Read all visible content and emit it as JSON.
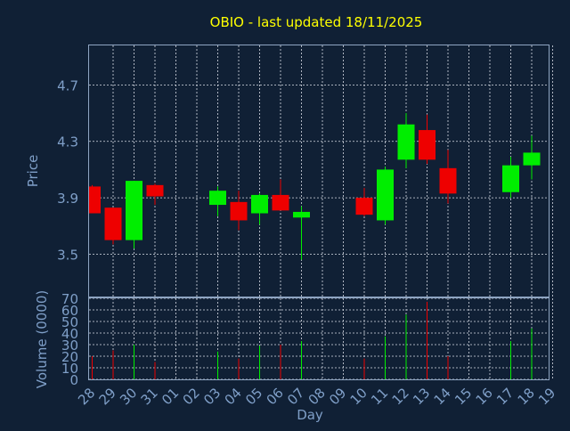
{
  "colors": {
    "background": "#102035",
    "frame": "#8fa5c2",
    "grid": "#d8dde6",
    "title": "#ffff00",
    "label": "#7f9fc8",
    "up": "#00ee00",
    "down": "#ee0000"
  },
  "chart_data": {
    "type": "candlestick",
    "title": "OBIO - last updated 18/11/2025",
    "xlabel": "Day",
    "price_panel": {
      "ylabel": "Price",
      "ylim": [
        3.2,
        4.98
      ],
      "yticks": [
        "3.5",
        "3.9",
        "4.3",
        "4.7"
      ],
      "grid": true
    },
    "volume_panel": {
      "ylabel": "Volume (0000)",
      "ylim": [
        0,
        70
      ],
      "yticks": [
        "0",
        "10",
        "20",
        "30",
        "40",
        "50",
        "60",
        "70"
      ],
      "grid": true
    },
    "x_ticks": [
      "28",
      "29",
      "30",
      "31",
      "01",
      "02",
      "03",
      "04",
      "05",
      "06",
      "07",
      "08",
      "09",
      "10",
      "11",
      "12",
      "13",
      "14",
      "15",
      "16",
      "17",
      "18",
      "19"
    ],
    "candles": [
      {
        "day": "28",
        "open": 3.98,
        "high": 3.99,
        "low": 3.79,
        "close": 3.79,
        "volume": 20
      },
      {
        "day": "29",
        "open": 3.83,
        "high": 3.83,
        "low": 3.57,
        "close": 3.6,
        "volume": 25
      },
      {
        "day": "30",
        "open": 3.6,
        "high": 4.02,
        "low": 3.54,
        "close": 4.02,
        "volume": 30
      },
      {
        "day": "31",
        "open": 3.99,
        "high": 4.0,
        "low": 3.85,
        "close": 3.91,
        "volume": 15
      },
      {
        "day": "03",
        "open": 3.85,
        "high": 3.98,
        "low": 3.77,
        "close": 3.95,
        "volume": 24
      },
      {
        "day": "04",
        "open": 3.87,
        "high": 3.95,
        "low": 3.67,
        "close": 3.74,
        "volume": 18
      },
      {
        "day": "05",
        "open": 3.79,
        "high": 3.93,
        "low": 3.71,
        "close": 3.92,
        "volume": 29
      },
      {
        "day": "06",
        "open": 3.92,
        "high": 4.03,
        "low": 3.81,
        "close": 3.81,
        "volume": 30
      },
      {
        "day": "07",
        "open": 3.76,
        "high": 3.84,
        "low": 3.46,
        "close": 3.8,
        "volume": 33
      },
      {
        "day": "10",
        "open": 3.9,
        "high": 3.97,
        "low": 3.77,
        "close": 3.78,
        "volume": 18
      },
      {
        "day": "11",
        "open": 3.74,
        "high": 4.12,
        "low": 3.71,
        "close": 4.1,
        "volume": 37
      },
      {
        "day": "12",
        "open": 4.17,
        "high": 4.5,
        "low": 4.11,
        "close": 4.42,
        "volume": 56
      },
      {
        "day": "13",
        "open": 4.38,
        "high": 4.49,
        "low": 4.14,
        "close": 4.17,
        "volume": 67
      },
      {
        "day": "14",
        "open": 4.11,
        "high": 4.24,
        "low": 3.86,
        "close": 3.93,
        "volume": 20
      },
      {
        "day": "17",
        "open": 3.94,
        "high": 4.19,
        "low": 3.9,
        "close": 4.13,
        "volume": 33
      },
      {
        "day": "18",
        "open": 4.13,
        "high": 4.34,
        "low": 4.03,
        "close": 4.22,
        "volume": 44
      }
    ]
  }
}
